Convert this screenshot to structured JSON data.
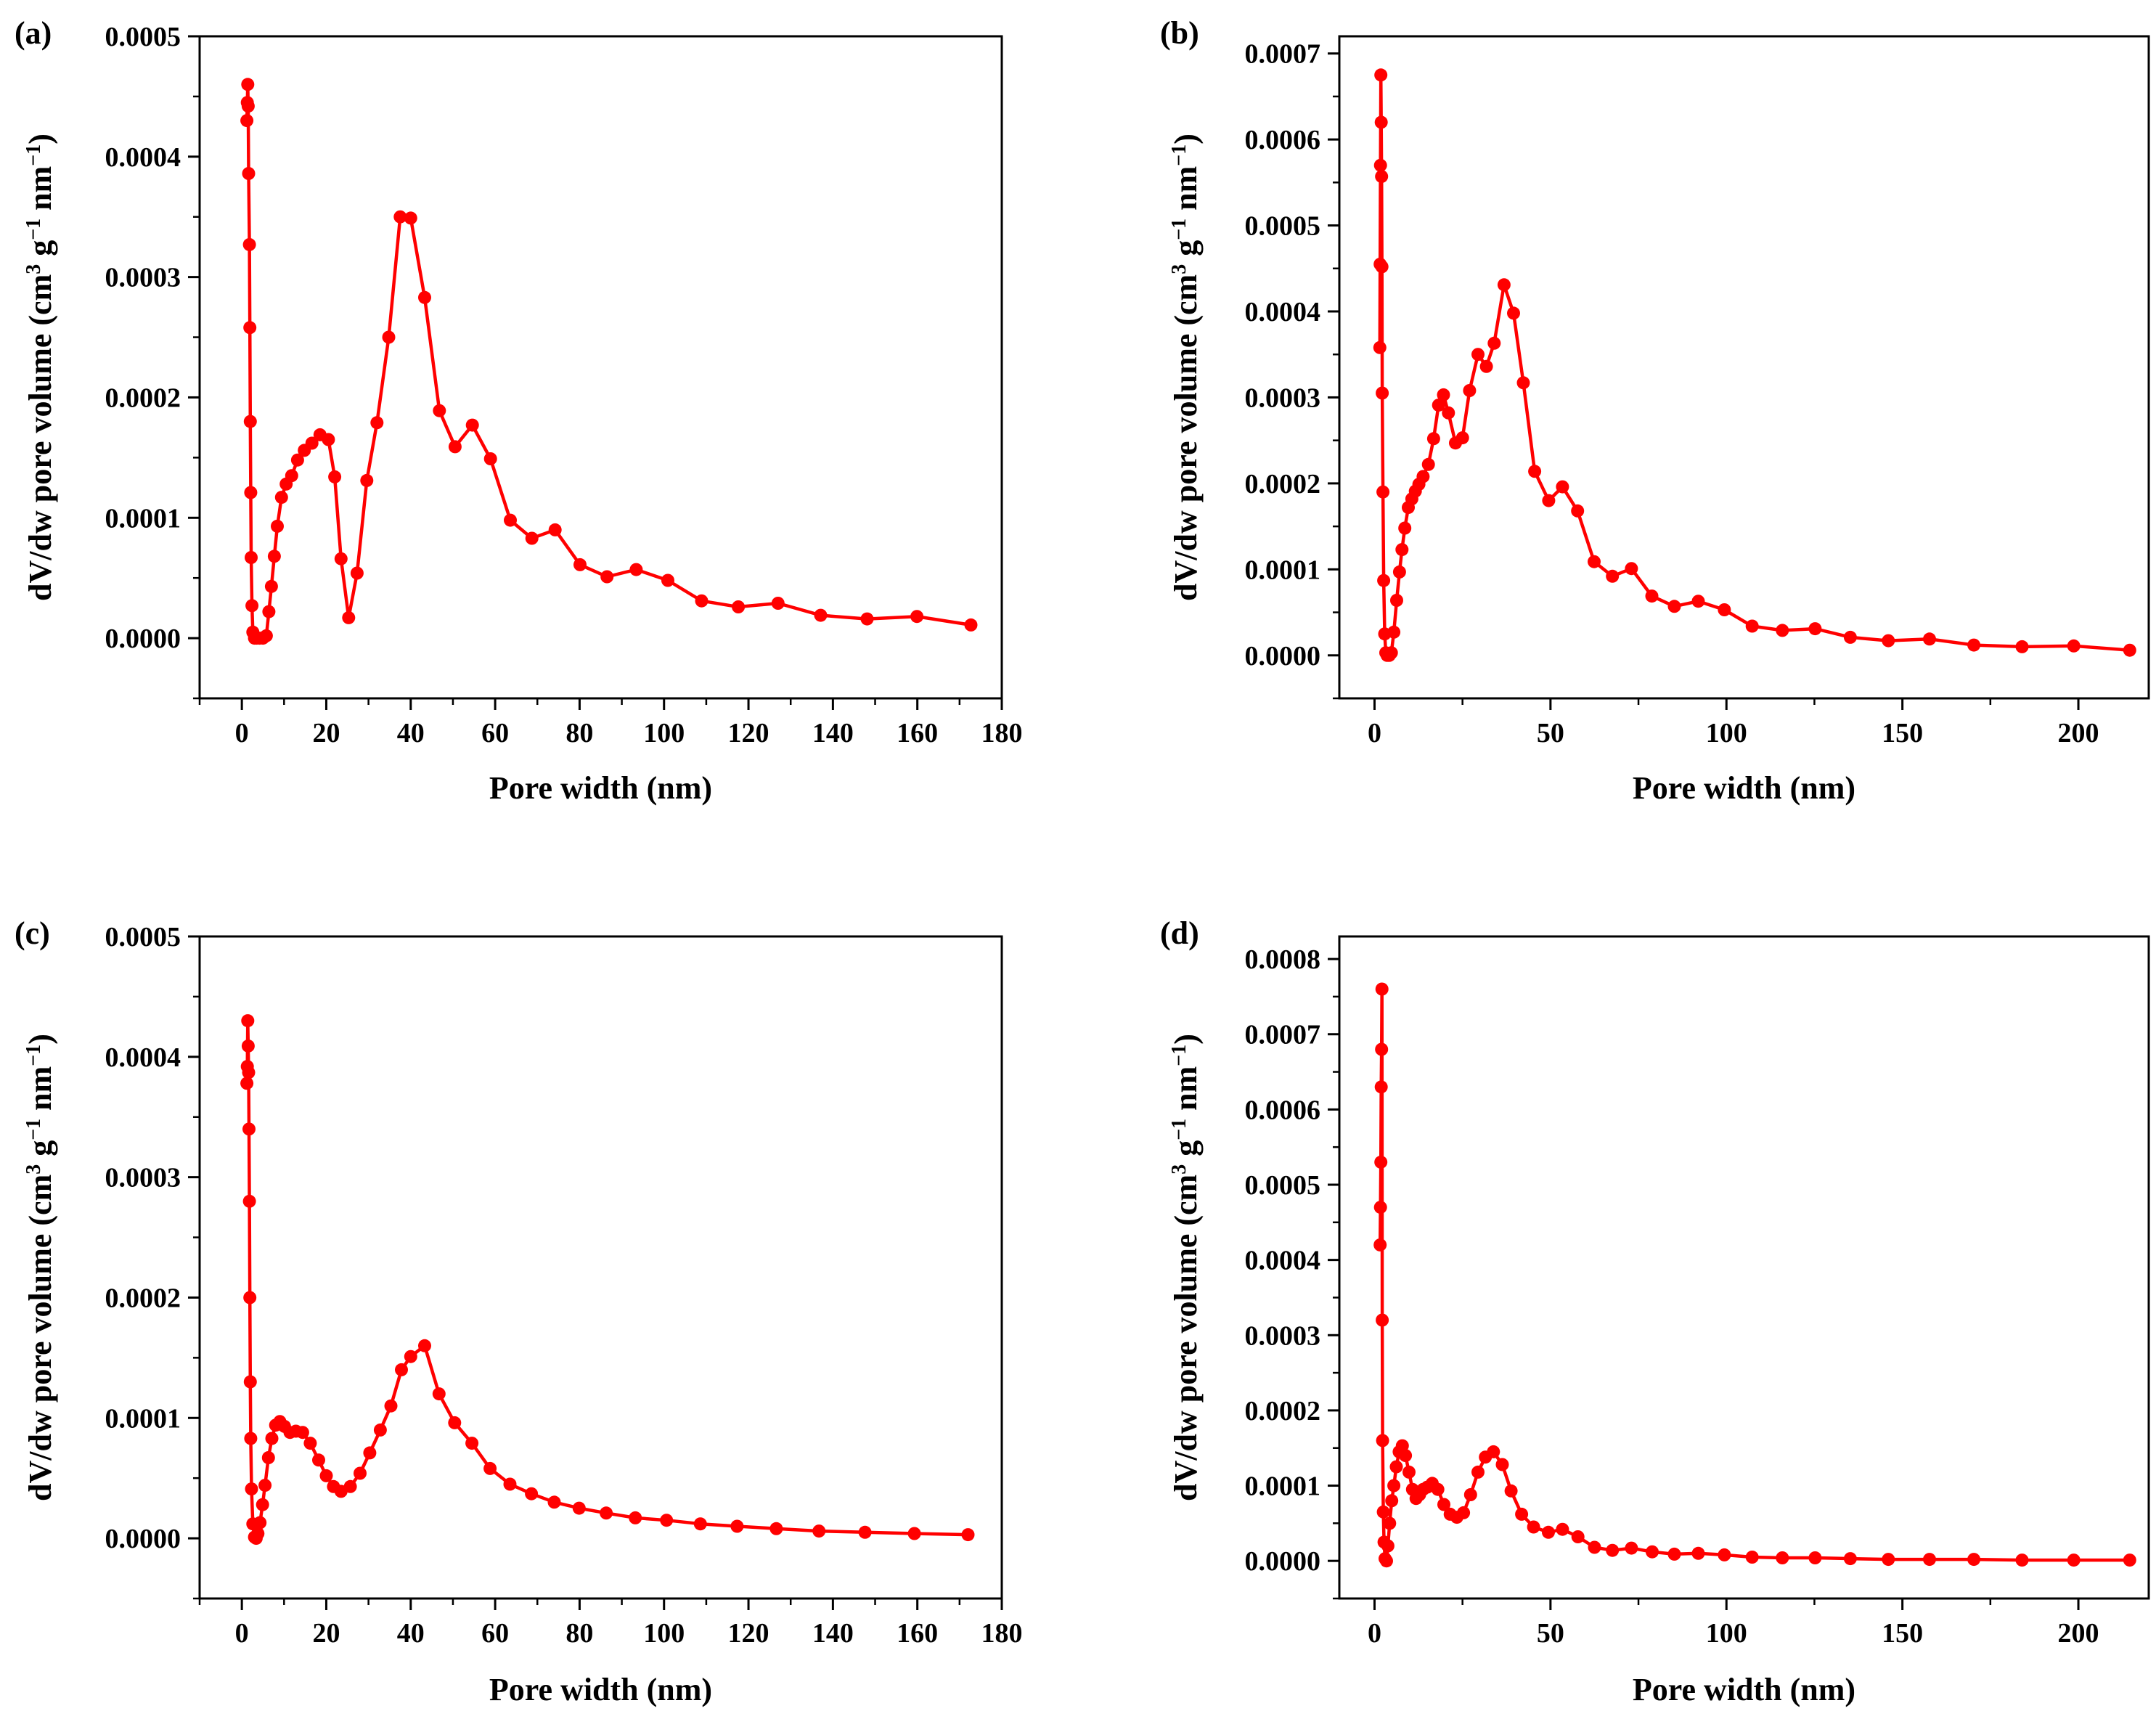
{
  "chart_data": [
    {
      "type": "line",
      "panel_label": "(a)",
      "xlabel": "Pore width (nm)",
      "ylabel_html_parts": [
        "dV/dw pore volume (cm",
        "3",
        " g",
        "−1",
        " nm",
        "−1",
        ")"
      ],
      "xlim": [
        -10,
        180
      ],
      "ylim": [
        -5e-05,
        0.0005
      ],
      "xticks": [
        0,
        20,
        40,
        60,
        80,
        100,
        120,
        140,
        160,
        180
      ],
      "xtick_labels": [
        "0",
        "20",
        "40",
        "60",
        "80",
        "100",
        "120",
        "140",
        "160",
        "180"
      ],
      "yticks": [
        0,
        0.0001,
        0.0002,
        0.0003,
        0.0004,
        0.0005
      ],
      "ytick_labels": [
        "0.0000",
        "0.0001",
        "0.0002",
        "0.0003",
        "0.0004",
        "0.0005"
      ],
      "series": [
        {
          "name": "a",
          "color": "#ff0000",
          "x": [
            1.2,
            1.3,
            1.4,
            1.5,
            1.6,
            1.8,
            1.9,
            2.0,
            2.1,
            2.2,
            2.4,
            2.6,
            3.0,
            3.5,
            4.2,
            5.0,
            5.8,
            6.4,
            7.0,
            7.7,
            8.4,
            9.4,
            10.5,
            11.8,
            13.2,
            14.8,
            16.6,
            18.5,
            20.5,
            22.0,
            23.5,
            25.3,
            27.3,
            29.6,
            32.0,
            34.8,
            37.5,
            40.0,
            43.3,
            46.8,
            50.5,
            54.6,
            58.9,
            63.6,
            68.7,
            74.2,
            80.1,
            86.5,
            93.4,
            100.9,
            108.9,
            117.6,
            127.0,
            137.1,
            148.1,
            159.9,
            172.7
          ],
          "y": [
            0.00043,
            0.000445,
            0.00046,
            0.000442,
            0.000386,
            0.000327,
            0.000258,
            0.00018,
            0.000121,
            6.7e-05,
            2.7e-05,
            5e-06,
            0.0,
            0.0,
            0.0,
            0.0,
            2e-06,
            2.2e-05,
            4.3e-05,
            6.8e-05,
            9.3e-05,
            0.000117,
            0.000128,
            0.000135,
            0.000148,
            0.000156,
            0.000162,
            0.000169,
            0.000165,
            0.000134,
            6.6e-05,
            1.7e-05,
            5.4e-05,
            0.000131,
            0.000179,
            0.00025,
            0.00035,
            0.000349,
            0.000283,
            0.000189,
            0.000159,
            0.000177,
            0.000149,
            9.8e-05,
            8.3e-05,
            9e-05,
            6.1e-05,
            5.1e-05,
            5.7e-05,
            4.8e-05,
            3.1e-05,
            2.6e-05,
            2.9e-05,
            1.9e-05,
            1.6e-05,
            1.8e-05,
            1.1e-05
          ]
        }
      ]
    },
    {
      "type": "line",
      "panel_label": "(b)",
      "xlabel": "Pore width (nm)",
      "ylabel_html_parts": [
        "dV/dw pore volume (cm",
        "3",
        " g",
        "−1",
        " nm",
        "−1",
        ")"
      ],
      "xlim": [
        -10,
        220
      ],
      "ylim": [
        -5e-05,
        0.00072
      ],
      "xticks": [
        0,
        50,
        100,
        150,
        200
      ],
      "xtick_labels": [
        "0",
        "50",
        "100",
        "150",
        "200"
      ],
      "yticks": [
        0,
        0.0001,
        0.0002,
        0.0003,
        0.0004,
        0.0005,
        0.0006,
        0.0007
      ],
      "ytick_labels": [
        "0.0000",
        "0.0001",
        "0.0002",
        "0.0003",
        "0.0004",
        "0.0005",
        "0.0006",
        "0.0007"
      ],
      "series": [
        {
          "name": "b",
          "color": "#ff0000",
          "x": [
            1.5,
            1.6,
            1.7,
            1.8,
            1.9,
            2.0,
            2.1,
            2.2,
            2.4,
            2.6,
            2.9,
            3.2,
            3.6,
            4.2,
            4.8,
            5.5,
            6.3,
            7.1,
            7.8,
            8.6,
            9.6,
            10.6,
            11.6,
            12.6,
            13.8,
            15.3,
            16.8,
            18.2,
            19.6,
            21.0,
            23.0,
            25.0,
            27.0,
            29.4,
            31.8,
            34.0,
            36.8,
            39.5,
            42.3,
            45.5,
            49.5,
            53.4,
            57.7,
            62.4,
            67.6,
            73.0,
            78.8,
            85.2,
            92.0,
            99.4,
            107.3,
            115.9,
            125.2,
            135.2,
            146.0,
            157.7,
            170.3,
            184.0,
            198.7,
            214.6
          ],
          "y": [
            0.000358,
            0.000455,
            0.00057,
            0.000675,
            0.00062,
            0.000557,
            0.000452,
            0.000305,
            0.00019,
            8.7e-05,
            2.5e-05,
            3e-06,
            0.0,
            0.0,
            3e-06,
            2.7e-05,
            6.4e-05,
            9.7e-05,
            0.000123,
            0.000148,
            0.000172,
            0.000182,
            0.000191,
            0.000199,
            0.000208,
            0.000222,
            0.000252,
            0.000291,
            0.000303,
            0.000282,
            0.000247,
            0.000253,
            0.000308,
            0.00035,
            0.000336,
            0.000363,
            0.000431,
            0.000398,
            0.000317,
            0.000214,
            0.00018,
            0.000196,
            0.000168,
            0.000109,
            9.2e-05,
            0.000101,
            6.9e-05,
            5.7e-05,
            6.3e-05,
            5.3e-05,
            3.4e-05,
            2.9e-05,
            3.1e-05,
            2.1e-05,
            1.7e-05,
            1.9e-05,
            1.2e-05,
            1e-05,
            1.1e-05,
            6e-06
          ]
        }
      ]
    },
    {
      "type": "line",
      "panel_label": "(c)",
      "xlabel": "Pore width (nm)",
      "ylabel_html_parts": [
        "dV/dw pore volume (cm",
        "3",
        " g",
        "−1",
        " nm",
        "−1",
        ")"
      ],
      "xlim": [
        -10,
        180
      ],
      "ylim": [
        -5e-05,
        0.0005
      ],
      "xticks": [
        0,
        20,
        40,
        60,
        80,
        100,
        120,
        140,
        160,
        180
      ],
      "xtick_labels": [
        "0",
        "20",
        "40",
        "60",
        "80",
        "100",
        "120",
        "140",
        "160",
        "180"
      ],
      "yticks": [
        0,
        0.0001,
        0.0002,
        0.0003,
        0.0004,
        0.0005
      ],
      "ytick_labels": [
        "0.0000",
        "0.0001",
        "0.0002",
        "0.0003",
        "0.0004",
        "0.0005"
      ],
      "series": [
        {
          "name": "c",
          "color": "#ff0000",
          "x": [
            1.2,
            1.3,
            1.4,
            1.5,
            1.6,
            1.7,
            1.8,
            1.9,
            2.0,
            2.1,
            2.3,
            2.6,
            3.0,
            3.4,
            3.8,
            4.3,
            4.9,
            5.5,
            6.3,
            7.1,
            8.0,
            9.0,
            10.1,
            11.4,
            12.8,
            14.4,
            16.2,
            18.2,
            20.0,
            21.7,
            23.5,
            25.7,
            28.0,
            30.3,
            32.8,
            35.3,
            37.8,
            40.0,
            43.3,
            46.7,
            50.4,
            54.5,
            58.8,
            63.5,
            68.6,
            74.0,
            79.9,
            86.3,
            93.2,
            100.6,
            108.6,
            117.3,
            126.6,
            136.7,
            147.6,
            159.3,
            172.0
          ],
          "y": [
            0.000378,
            0.000392,
            0.00043,
            0.000409,
            0.000387,
            0.00034,
            0.00028,
            0.0002,
            0.00013,
            8.3e-05,
            4.1e-05,
            1.2e-05,
            1e-06,
            0.0,
            4e-06,
            1.3e-05,
            2.8e-05,
            4.4e-05,
            6.7e-05,
            8.3e-05,
            9.4e-05,
            9.7e-05,
            9.3e-05,
            8.8e-05,
            8.9e-05,
            8.8e-05,
            7.9e-05,
            6.5e-05,
            5.2e-05,
            4.3e-05,
            3.9e-05,
            4.3e-05,
            5.4e-05,
            7.1e-05,
            9e-05,
            0.00011,
            0.00014,
            0.000151,
            0.00016,
            0.00012,
            9.6e-05,
            7.9e-05,
            5.8e-05,
            4.5e-05,
            3.7e-05,
            3e-05,
            2.5e-05,
            2.1e-05,
            1.7e-05,
            1.5e-05,
            1.2e-05,
            1e-05,
            8e-06,
            6e-06,
            5e-06,
            4e-06,
            3e-06
          ]
        }
      ]
    },
    {
      "type": "line",
      "panel_label": "(d)",
      "xlabel": "Pore width (nm)",
      "ylabel_html_parts": [
        "dV/dw pore volume (cm",
        "3",
        " g",
        "−1",
        " nm",
        "−1",
        ")"
      ],
      "xlim": [
        -10,
        220
      ],
      "ylim": [
        -5e-05,
        0.00083
      ],
      "xticks": [
        0,
        50,
        100,
        150,
        200
      ],
      "xtick_labels": [
        "0",
        "50",
        "100",
        "150",
        "200"
      ],
      "yticks": [
        0,
        0.0001,
        0.0002,
        0.0003,
        0.0004,
        0.0005,
        0.0006,
        0.0007,
        0.0008
      ],
      "ytick_labels": [
        "0.0000",
        "0.0001",
        "0.0002",
        "0.0003",
        "0.0004",
        "0.0005",
        "0.0006",
        "0.0007",
        "0.0008"
      ],
      "series": [
        {
          "name": "d",
          "color": "#ff0000",
          "x": [
            1.6,
            1.7,
            1.8,
            1.9,
            2.0,
            2.1,
            2.2,
            2.3,
            2.5,
            2.7,
            3.0,
            3.4,
            3.8,
            4.3,
            4.9,
            5.5,
            6.2,
            7.0,
            7.9,
            8.8,
            9.8,
            10.8,
            11.8,
            12.8,
            13.8,
            15.0,
            16.4,
            18.0,
            19.7,
            21.5,
            23.4,
            25.3,
            27.3,
            29.4,
            31.5,
            33.8,
            36.3,
            38.8,
            41.8,
            45.2,
            49.4,
            53.4,
            57.8,
            62.5,
            67.6,
            73.0,
            78.9,
            85.2,
            92.0,
            99.4,
            107.3,
            115.9,
            125.2,
            135.2,
            146.0,
            157.7,
            170.3,
            184.0,
            198.7,
            214.6
          ],
          "y": [
            0.00042,
            0.00047,
            0.00053,
            0.00063,
            0.00068,
            0.00076,
            0.00032,
            0.00016,
            6.5e-05,
            2.5e-05,
            3e-06,
            0.0,
            2e-05,
            5e-05,
            8e-05,
            0.0001,
            0.000125,
            0.000145,
            0.000153,
            0.00014,
            0.000118,
            9.5e-05,
            8.3e-05,
            8.8e-05,
            9.5e-05,
            9.8e-05,
            0.000103,
            9.5e-05,
            7.5e-05,
            6.2e-05,
            5.8e-05,
            6.4e-05,
            8.8e-05,
            0.000118,
            0.000138,
            0.000145,
            0.000128,
            9.3e-05,
            6.2e-05,
            4.5e-05,
            3.8e-05,
            4.2e-05,
            3.2e-05,
            1.8e-05,
            1.4e-05,
            1.7e-05,
            1.2e-05,
            9e-06,
            1e-05,
            8e-06,
            5e-06,
            4e-06,
            4e-06,
            3e-06,
            2e-06,
            2e-06,
            2e-06,
            1e-06,
            1e-06,
            1e-06
          ]
        }
      ]
    }
  ]
}
